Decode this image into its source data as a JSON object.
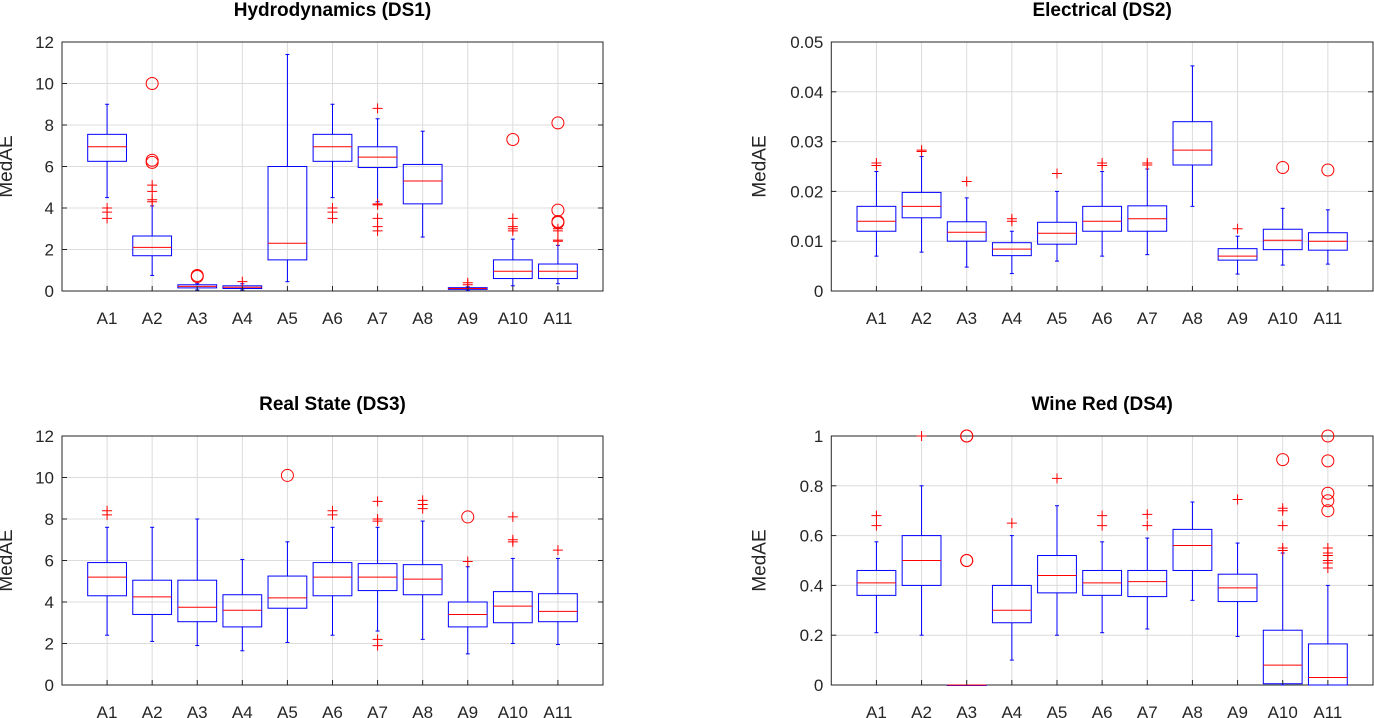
{
  "chart_data": [
    {
      "type": "boxplot",
      "title": "Hydrodynamics (DS1)",
      "ylabel": "MedAE",
      "ylim": [
        0,
        12
      ],
      "xlim": [
        0,
        12
      ],
      "yticks": [
        0,
        2,
        4,
        6,
        8,
        10,
        12
      ],
      "ytick_labels": [
        "0",
        "2",
        "4",
        "6",
        "8",
        "10",
        "12"
      ],
      "categories": [
        "A1",
        "A2",
        "A3",
        "A4",
        "A5",
        "A6",
        "A7",
        "A8",
        "A9",
        "A10",
        "A11"
      ],
      "boxes": [
        {
          "lo": 4.5,
          "q1": 6.25,
          "med": 6.95,
          "q3": 7.55,
          "hi": 9.0,
          "plus": [
            4.0,
            3.8,
            3.5
          ],
          "circle": []
        },
        {
          "lo": 0.75,
          "q1": 1.7,
          "med": 2.1,
          "q3": 2.65,
          "hi": 4.1,
          "plus": [
            5.1,
            4.8,
            4.4,
            4.3
          ],
          "circle": [
            6.2,
            6.3,
            10.0
          ]
        },
        {
          "lo": 0.05,
          "q1": 0.15,
          "med": 0.22,
          "q3": 0.3,
          "hi": 0.35,
          "plus": [],
          "circle": [
            0.7,
            0.75
          ]
        },
        {
          "lo": 0.05,
          "q1": 0.12,
          "med": 0.18,
          "q3": 0.25,
          "hi": 0.35,
          "plus": [
            0.45
          ],
          "circle": []
        },
        {
          "lo": 0.45,
          "q1": 1.5,
          "med": 2.3,
          "q3": 6.0,
          "hi": 11.4,
          "plus": [],
          "circle": []
        },
        {
          "lo": 4.5,
          "q1": 6.25,
          "med": 6.95,
          "q3": 7.55,
          "hi": 9.0,
          "plus": [
            4.0,
            3.8,
            3.5
          ],
          "circle": []
        },
        {
          "lo": 4.3,
          "q1": 5.95,
          "med": 6.45,
          "q3": 6.95,
          "hi": 8.3,
          "plus": [
            8.8,
            4.2,
            4.15,
            3.5,
            3.1,
            2.9
          ],
          "circle": []
        },
        {
          "lo": 2.6,
          "q1": 4.2,
          "med": 5.3,
          "q3": 6.1,
          "hi": 7.7,
          "plus": [],
          "circle": []
        },
        {
          "lo": 0.02,
          "q1": 0.08,
          "med": 0.12,
          "q3": 0.16,
          "hi": 0.2,
          "plus": [
            0.3,
            0.4
          ],
          "circle": []
        },
        {
          "lo": 0.25,
          "q1": 0.6,
          "med": 0.95,
          "q3": 1.5,
          "hi": 2.5,
          "plus": [
            2.9,
            3.0,
            3.1,
            3.5
          ],
          "circle": [
            7.3
          ]
        },
        {
          "lo": 0.35,
          "q1": 0.6,
          "med": 0.95,
          "q3": 1.3,
          "hi": 2.2,
          "plus": [
            2.4,
            2.45,
            2.9,
            3.0
          ],
          "circle": [
            3.3,
            3.35,
            3.9,
            8.1
          ]
        }
      ]
    },
    {
      "type": "boxplot",
      "title": "Electrical (DS2)",
      "ylabel": "MedAE",
      "ylim": [
        0,
        0.05
      ],
      "xlim": [
        -2,
        12
      ],
      "yticks": [
        0,
        0.01,
        0.02,
        0.03,
        0.04,
        0.05
      ],
      "ytick_labels": [
        "0",
        "0.01",
        "0.02",
        "0.03",
        "0.04",
        "0.05"
      ],
      "categories": [
        "A1",
        "A2",
        "A3",
        "A4",
        "A5",
        "A6",
        "A7",
        "A8",
        "A9",
        "A10",
        "A11"
      ],
      "boxes": [
        {
          "lo": 0.007,
          "q1": 0.012,
          "med": 0.014,
          "q3": 0.017,
          "hi": 0.024,
          "plus": [
            0.0252,
            0.0257
          ],
          "circle": []
        },
        {
          "lo": 0.0078,
          "q1": 0.0147,
          "med": 0.017,
          "q3": 0.0198,
          "hi": 0.027,
          "plus": [
            0.028,
            0.0283
          ],
          "circle": []
        },
        {
          "lo": 0.0048,
          "q1": 0.01,
          "med": 0.0118,
          "q3": 0.0139,
          "hi": 0.0187,
          "plus": [
            0.022
          ],
          "circle": []
        },
        {
          "lo": 0.0035,
          "q1": 0.0071,
          "med": 0.0084,
          "q3": 0.0097,
          "hi": 0.012,
          "plus": [
            0.014,
            0.0145
          ],
          "circle": []
        },
        {
          "lo": 0.006,
          "q1": 0.0094,
          "med": 0.0116,
          "q3": 0.0138,
          "hi": 0.02,
          "plus": [
            0.0236
          ],
          "circle": []
        },
        {
          "lo": 0.007,
          "q1": 0.012,
          "med": 0.014,
          "q3": 0.017,
          "hi": 0.024,
          "plus": [
            0.0252,
            0.0257
          ],
          "circle": []
        },
        {
          "lo": 0.0073,
          "q1": 0.012,
          "med": 0.0145,
          "q3": 0.0171,
          "hi": 0.0245,
          "plus": [
            0.0253,
            0.0257
          ],
          "circle": []
        },
        {
          "lo": 0.017,
          "q1": 0.0253,
          "med": 0.0283,
          "q3": 0.034,
          "hi": 0.0452,
          "plus": [],
          "circle": []
        },
        {
          "lo": 0.0034,
          "q1": 0.0062,
          "med": 0.007,
          "q3": 0.0085,
          "hi": 0.011,
          "plus": [
            0.0125
          ],
          "circle": []
        },
        {
          "lo": 0.0052,
          "q1": 0.0083,
          "med": 0.0102,
          "q3": 0.0124,
          "hi": 0.0166,
          "plus": [],
          "circle": [
            0.0248
          ]
        },
        {
          "lo": 0.0054,
          "q1": 0.0082,
          "med": 0.01,
          "q3": 0.0117,
          "hi": 0.0163,
          "plus": [],
          "circle": [
            0.0243
          ]
        }
      ]
    },
    {
      "type": "boxplot",
      "title": "Real State (DS3)",
      "ylabel": "MedAE",
      "ylim": [
        0,
        12
      ],
      "xlim": [
        0,
        12
      ],
      "yticks": [
        0,
        2,
        4,
        6,
        8,
        10,
        12
      ],
      "ytick_labels": [
        "0",
        "2",
        "4",
        "6",
        "8",
        "10",
        "12"
      ],
      "categories": [
        "A1",
        "A2",
        "A3",
        "A4",
        "A5",
        "A6",
        "A7",
        "A8",
        "A9",
        "A10",
        "A11"
      ],
      "boxes": [
        {
          "lo": 2.4,
          "q1": 4.3,
          "med": 5.2,
          "q3": 5.9,
          "hi": 7.6,
          "plus": [
            8.2,
            8.4
          ],
          "circle": []
        },
        {
          "lo": 2.1,
          "q1": 3.4,
          "med": 4.25,
          "q3": 5.05,
          "hi": 7.6,
          "plus": [],
          "circle": []
        },
        {
          "lo": 1.9,
          "q1": 3.05,
          "med": 3.75,
          "q3": 5.05,
          "hi": 8.0,
          "plus": [],
          "circle": []
        },
        {
          "lo": 1.65,
          "q1": 2.8,
          "med": 3.6,
          "q3": 4.35,
          "hi": 6.05,
          "plus": [],
          "circle": []
        },
        {
          "lo": 2.05,
          "q1": 3.7,
          "med": 4.2,
          "q3": 5.25,
          "hi": 6.9,
          "plus": [],
          "circle": [
            10.1
          ]
        },
        {
          "lo": 2.4,
          "q1": 4.3,
          "med": 5.2,
          "q3": 5.9,
          "hi": 7.6,
          "plus": [
            8.2,
            8.4
          ],
          "circle": []
        },
        {
          "lo": 2.6,
          "q1": 4.55,
          "med": 5.2,
          "q3": 5.85,
          "hi": 7.6,
          "plus": [
            8.85,
            8.0,
            7.9,
            2.2,
            1.9
          ],
          "circle": []
        },
        {
          "lo": 2.2,
          "q1": 4.35,
          "med": 5.1,
          "q3": 5.8,
          "hi": 7.9,
          "plus": [
            8.5,
            8.7,
            8.9
          ],
          "circle": []
        },
        {
          "lo": 1.5,
          "q1": 2.8,
          "med": 3.4,
          "q3": 4.0,
          "hi": 5.7,
          "plus": [
            5.95
          ],
          "circle": [
            8.1
          ]
        },
        {
          "lo": 2.0,
          "q1": 3.0,
          "med": 3.8,
          "q3": 4.5,
          "hi": 6.1,
          "plus": [
            6.9,
            7.0,
            8.1
          ],
          "circle": []
        },
        {
          "lo": 1.95,
          "q1": 3.05,
          "med": 3.55,
          "q3": 4.4,
          "hi": 6.1,
          "plus": [
            6.5
          ],
          "circle": []
        }
      ]
    },
    {
      "type": "boxplot",
      "title": "Wine Red (DS4)",
      "ylabel": "MedAE",
      "ylim": [
        0,
        1
      ],
      "xlim": [
        -2,
        12
      ],
      "yticks": [
        0,
        0.2,
        0.4,
        0.6,
        0.8,
        1
      ],
      "ytick_labels": [
        "0",
        "0.2",
        "0.4",
        "0.6",
        "0.8",
        "1"
      ],
      "categories": [
        "A1",
        "A2",
        "A3",
        "A4",
        "A5",
        "A6",
        "A7",
        "A8",
        "A9",
        "A10",
        "A11"
      ],
      "boxes": [
        {
          "lo": 0.21,
          "q1": 0.36,
          "med": 0.41,
          "q3": 0.46,
          "hi": 0.575,
          "plus": [
            0.64,
            0.68
          ],
          "circle": []
        },
        {
          "lo": 0.2,
          "q1": 0.4,
          "med": 0.5,
          "q3": 0.6,
          "hi": 0.8,
          "plus": [
            1.0
          ],
          "circle": []
        },
        {
          "lo": 0,
          "q1": 0,
          "med": 0,
          "q3": 0,
          "hi": 0,
          "plus": [],
          "circle": [
            0.5,
            0.5,
            1.0,
            1.0
          ]
        },
        {
          "lo": 0.1,
          "q1": 0.25,
          "med": 0.3,
          "q3": 0.4,
          "hi": 0.6,
          "plus": [
            0.65
          ],
          "circle": []
        },
        {
          "lo": 0.2,
          "q1": 0.37,
          "med": 0.44,
          "q3": 0.52,
          "hi": 0.72,
          "plus": [
            0.83
          ],
          "circle": []
        },
        {
          "lo": 0.21,
          "q1": 0.36,
          "med": 0.41,
          "q3": 0.46,
          "hi": 0.575,
          "plus": [
            0.64,
            0.68
          ],
          "circle": []
        },
        {
          "lo": 0.225,
          "q1": 0.355,
          "med": 0.415,
          "q3": 0.46,
          "hi": 0.59,
          "plus": [
            0.64,
            0.685
          ],
          "circle": []
        },
        {
          "lo": 0.34,
          "q1": 0.46,
          "med": 0.56,
          "q3": 0.625,
          "hi": 0.735,
          "plus": [],
          "circle": []
        },
        {
          "lo": 0.195,
          "q1": 0.335,
          "med": 0.39,
          "q3": 0.445,
          "hi": 0.57,
          "plus": [
            0.745
          ],
          "circle": []
        },
        {
          "lo": 0,
          "q1": 0.005,
          "med": 0.08,
          "q3": 0.22,
          "hi": 0.53,
          "plus": [
            0.54,
            0.55,
            0.64,
            0.7,
            0.71
          ],
          "circle": [
            0.905
          ]
        },
        {
          "lo": 0,
          "q1": 0,
          "med": 0.03,
          "q3": 0.165,
          "hi": 0.4,
          "plus": [
            0.47,
            0.49,
            0.5,
            0.52,
            0.53,
            0.55
          ],
          "circle": [
            0.7,
            0.74,
            0.77,
            0.9,
            1.0
          ]
        }
      ]
    }
  ],
  "colors": {
    "box": "#0000ff",
    "median": "#ff0000",
    "outlier": "#ff0000",
    "grid": "#dcdcdc",
    "axis": "#262626"
  }
}
